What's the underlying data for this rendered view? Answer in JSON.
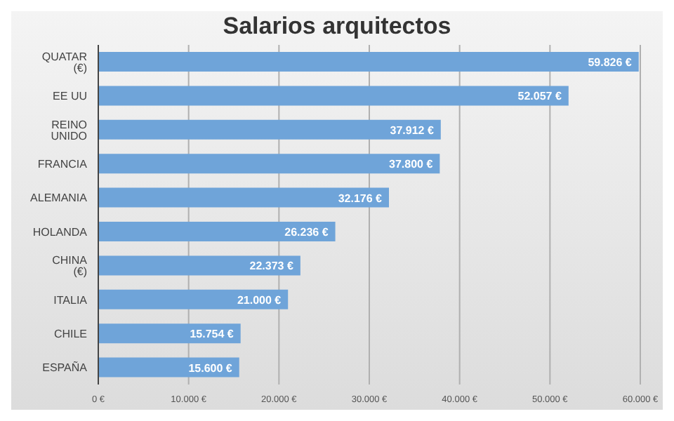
{
  "chart_data": {
    "type": "bar",
    "orientation": "horizontal",
    "title": "Salarios arquitectos",
    "categories": [
      "QUATAR (€)",
      "EE UU",
      "REINO UNIDO",
      "FRANCIA",
      "ALEMANIA",
      "HOLANDA",
      "CHINA (€)",
      "ITALIA",
      "CHILE",
      "ESPAÑA"
    ],
    "values": [
      59826,
      52057,
      37912,
      37800,
      32176,
      26236,
      22373,
      21000,
      15754,
      15600
    ],
    "value_labels": [
      "59.826 €",
      "52.057 €",
      "37.912 €",
      "37.800 €",
      "32.176 €",
      "26.236 €",
      "22.373 €",
      "21.000 €",
      "15.754 €",
      "15.600 €"
    ],
    "color": "#6fa4d9",
    "xlim": [
      0,
      60000
    ],
    "xticks": [
      {
        "value": 0,
        "label": "0 €"
      },
      {
        "value": 10000,
        "label": "10.000 €"
      },
      {
        "value": 20000,
        "label": "20.000 €"
      },
      {
        "value": 30000,
        "label": "30.000 €"
      },
      {
        "value": 40000,
        "label": "40.000 €"
      },
      {
        "value": 50000,
        "label": "50.000 €"
      },
      {
        "value": 60000,
        "label": "60.000 €"
      }
    ],
    "grid": "x",
    "legend": false
  }
}
